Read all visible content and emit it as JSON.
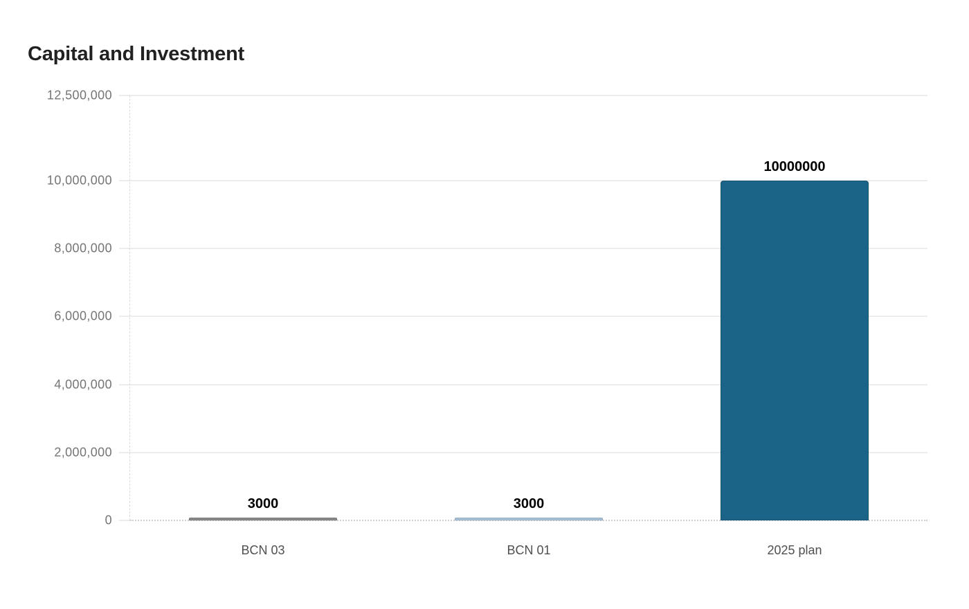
{
  "title": "Capital and Investment",
  "chart_data": {
    "type": "bar",
    "title": "Capital and Investment",
    "categories": [
      "BCN 03",
      "BCN 01",
      "2025 plan"
    ],
    "values": [
      3000,
      3000,
      10000000
    ],
    "value_labels": [
      "3000",
      "3000",
      "10000000"
    ],
    "bar_colors": [
      "#8f8f8f",
      "#aec4d6",
      "#1b6387"
    ],
    "bar_border_colors": [
      "#6f6f6f",
      "#8ba8c0",
      "#155372"
    ],
    "xlabel": "",
    "ylabel": "",
    "ylim": [
      0,
      12500000
    ],
    "yticks": [
      {
        "value": 0,
        "label": "0"
      },
      {
        "value": 2000000,
        "label": "2,000,000"
      },
      {
        "value": 4000000,
        "label": "4,000,000"
      },
      {
        "value": 6000000,
        "label": "6,000,000"
      },
      {
        "value": 8000000,
        "label": "8,000,000"
      },
      {
        "value": 10000000,
        "label": "10,000,000"
      },
      {
        "value": 12500000,
        "label": "12,500,000"
      }
    ],
    "grid": true,
    "legend": "none",
    "colors": {
      "title": "#212121",
      "axis_tick_label": "#757575",
      "category_label": "#4f4f4f",
      "value_label": "#000000",
      "gridline": "#ececec",
      "zero_line": "#cfcfcf",
      "background": "#ffffff"
    }
  }
}
